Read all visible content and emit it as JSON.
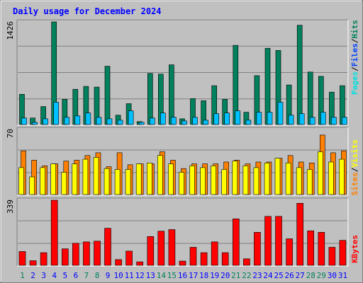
{
  "title": "Daily usage for December 2024",
  "colors": {
    "hits": "#00805C",
    "files": "#00C0FF",
    "pages": "#00E0E0",
    "visits": "#FF8000",
    "sites": "#FFFF00",
    "kbytes": "#FF0000",
    "weekend_day": "#00805C",
    "weekday": "#0000FF",
    "panel": "#C0C0C0",
    "title": "#0000FF"
  },
  "legend": {
    "top": [
      {
        "label": "Pages",
        "color": "#00E0E0"
      },
      {
        "label": "/",
        "color": "#000000"
      },
      {
        "label": "Files",
        "color": "#0040FF"
      },
      {
        "label": "/",
        "color": "#000000"
      },
      {
        "label": "Hits",
        "color": "#00805C"
      }
    ],
    "middle": [
      {
        "label": "Sites",
        "color": "#FF8000"
      },
      {
        "label": "/",
        "color": "#000000"
      },
      {
        "label": "Visits",
        "color": "#FFFF00"
      }
    ],
    "bottom": [
      {
        "label": "KBytes",
        "color": "#FF0000"
      }
    ]
  },
  "chart_data": [
    {
      "type": "bar",
      "name": "hits-files-pages",
      "ymax_label": "1426",
      "ylim": [
        0,
        1426
      ],
      "x": [
        1,
        2,
        3,
        4,
        5,
        6,
        7,
        8,
        9,
        10,
        11,
        12,
        13,
        14,
        15,
        16,
        17,
        18,
        19,
        20,
        21,
        22,
        23,
        24,
        25,
        26,
        27,
        28,
        29,
        30,
        31
      ],
      "weekend_days": [
        1,
        7,
        8,
        14,
        15,
        21,
        22,
        28,
        29
      ],
      "series": [
        {
          "name": "Hits",
          "values": [
            420,
            90,
            250,
            1426,
            350,
            490,
            530,
            520,
            810,
            130,
            290,
            40,
            710,
            700,
            830,
            80,
            360,
            330,
            540,
            350,
            1100,
            170,
            680,
            1060,
            1030,
            550,
            1380,
            730,
            670,
            450,
            540
          ]
        },
        {
          "name": "Files",
          "values": [
            90,
            30,
            80,
            310,
            100,
            120,
            160,
            100,
            80,
            60,
            190,
            30,
            90,
            160,
            100,
            50,
            100,
            60,
            150,
            160,
            190,
            60,
            170,
            170,
            310,
            130,
            150,
            100,
            170,
            100,
            100
          ]
        },
        {
          "name": "Pages",
          "values": [
            80,
            30,
            60,
            60,
            80,
            60,
            60,
            50,
            70,
            40,
            140,
            30,
            60,
            60,
            80,
            40,
            60,
            60,
            80,
            60,
            80,
            40,
            60,
            60,
            80,
            60,
            60,
            60,
            60,
            60,
            60
          ]
        }
      ]
    },
    {
      "type": "bar",
      "name": "visits-sites",
      "ymax_label": "70",
      "ylim": [
        0,
        70
      ],
      "x": [
        1,
        2,
        3,
        4,
        5,
        6,
        7,
        8,
        9,
        10,
        11,
        12,
        13,
        14,
        15,
        16,
        17,
        18,
        19,
        20,
        21,
        22,
        23,
        24,
        25,
        26,
        27,
        28,
        29,
        30,
        31
      ],
      "series": [
        {
          "name": "Visits",
          "values": [
            29,
            19,
            29,
            33,
            24,
            33,
            38,
            40,
            28,
            27,
            27,
            33,
            34,
            42,
            33,
            24,
            31,
            29,
            31,
            27,
            36,
            31,
            29,
            34,
            39,
            34,
            29,
            27,
            46,
            35,
            38
          ]
        },
        {
          "name": "Sites",
          "values": [
            47,
            37,
            31,
            33,
            36,
            37,
            42,
            45,
            30,
            45,
            32,
            33,
            33,
            46,
            37,
            28,
            33,
            33,
            33,
            35,
            37,
            33,
            35,
            35,
            39,
            42,
            35,
            34,
            64,
            45,
            47
          ]
        }
      ]
    },
    {
      "type": "bar",
      "name": "kbytes",
      "ymax_label": "339",
      "ylim": [
        0,
        339
      ],
      "x": [
        1,
        2,
        3,
        4,
        5,
        6,
        7,
        8,
        9,
        10,
        11,
        12,
        13,
        14,
        15,
        16,
        17,
        18,
        19,
        20,
        21,
        22,
        23,
        24,
        25,
        26,
        27,
        28,
        29,
        30,
        31
      ],
      "series": [
        {
          "name": "KBytes",
          "values": [
            72,
            24,
            66,
            339,
            86,
            115,
            122,
            126,
            193,
            30,
            74,
            18,
            150,
            178,
            186,
            22,
            94,
            66,
            122,
            66,
            242,
            34,
            172,
            255,
            255,
            138,
            323,
            180,
            172,
            94,
            130
          ]
        }
      ]
    }
  ]
}
